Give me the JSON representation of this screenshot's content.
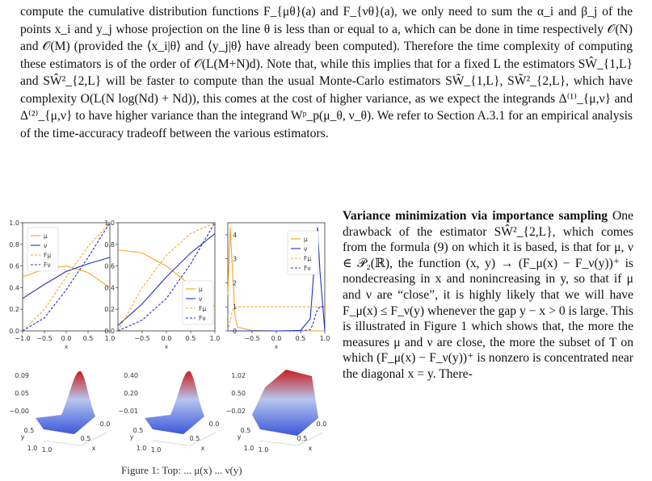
{
  "document": {
    "paragraph": "compute the cumulative distribution functions F_{μθ}(a) and F_{νθ}(a), we only need to sum the α_i and β_j of the points x_i and y_j whose projection on the line θ is less than or equal to a, which can be done in time respectively 𝒪(N) and 𝒪(M) (provided the ⟨x_i|θ⟩ and ⟨y_j|θ⟩ have already been computed). Therefore the time complexity of computing these estimators is of the order of 𝒪(L(M+N)d). Note that, while this implies that for a fixed L the estimators SŴ_{1,L} and SŴ²_{2,L} will be faster to compute than the usual Monte-Carlo estimators SW̃_{1,L}, SW̃²_{2,L}, which have complexity O(L(N log(Nd) + Nd)), this comes at the cost of higher variance, as we expect the integrands Δ⁽¹⁾_{μ,ν} and Δ⁽²⁾_{μ,ν} to have higher variance than the integrand Wᵖ_p(μ_θ, ν_θ). We refer to Section A.3.1 for an empirical analysis of the time-accuracy tradeoff between the various estimators.",
    "section_heading": "Variance minimization via importance sampling",
    "section_text": "One drawback of the estimator SŴ²_{2,L}, which comes from the formula (9) on which it is based, is that for μ, ν ∈ 𝒫₂(ℝ), the function (x, y) → (F_μ(x) − F_ν(y))⁺ is nondecreasing in x and nonincreasing in y, so that if μ and ν are “close”, it is highly likely that we will have F_μ(x) ≤ F_ν(y) whenever the gap y − x > 0 is large. This is illustrated in Figure 1 which shows that, the more the measures μ and ν are close, the more the subset of T on which (F_μ(x) − F_ν(y))⁺ is nonzero is concentrated near the diagonal x = y. There-",
    "caption_fragment": "Figure 1: Top: ... μ(x) ... ν(y)"
  },
  "chart_data": [
    {
      "type": "line",
      "x": [
        -1.0,
        -0.5,
        0.0,
        0.5,
        1.0
      ],
      "xlim": [
        -1.0,
        1.0
      ],
      "ylim": [
        0.0,
        1.0
      ],
      "xticks": [
        "−1.0",
        "−0.5",
        "0.0",
        "0.5",
        "1.0"
      ],
      "yticks": [
        "0.0",
        "0.2",
        "0.4",
        "0.6",
        "0.8",
        "1.0"
      ],
      "xlabel": "x",
      "legend": [
        "μ",
        "ν",
        "Fμ",
        "Fν"
      ],
      "legend_placement": "upper-left",
      "series": [
        {
          "name": "μ",
          "values": [
            0.5,
            0.57,
            0.6,
            0.54,
            0.4
          ]
        },
        {
          "name": "ν",
          "values": [
            0.3,
            0.43,
            0.55,
            0.62,
            0.68
          ]
        },
        {
          "name": "Fμ",
          "values": [
            0.0,
            0.2,
            0.5,
            0.78,
            1.0
          ]
        },
        {
          "name": "Fν",
          "values": [
            0.0,
            0.12,
            0.38,
            0.68,
            1.0
          ]
        }
      ]
    },
    {
      "type": "line",
      "x": [
        -1.0,
        -0.5,
        0.0,
        0.5,
        1.0
      ],
      "xlim": [
        -1.0,
        1.0
      ],
      "ylim": [
        0.0,
        1.0
      ],
      "xticks": [
        "−1.0",
        "−0.5",
        "0.0",
        "0.5",
        "1.0"
      ],
      "yticks": [
        "0.0",
        "0.2",
        "0.4",
        "0.6",
        "0.8",
        "1.0"
      ],
      "xlabel": "x",
      "legend": [
        "μ",
        "ν",
        "Fμ",
        "Fν"
      ],
      "legend_placement": "lower-right",
      "series": [
        {
          "name": "μ",
          "values": [
            0.75,
            0.72,
            0.6,
            0.42,
            0.22
          ]
        },
        {
          "name": "ν",
          "values": [
            0.05,
            0.25,
            0.5,
            0.72,
            0.9
          ]
        },
        {
          "name": "Fμ",
          "values": [
            0.0,
            0.4,
            0.7,
            0.9,
            1.0
          ]
        },
        {
          "name": "Fν",
          "values": [
            0.0,
            0.1,
            0.3,
            0.62,
            1.0
          ]
        }
      ]
    },
    {
      "type": "line",
      "x": [
        -1.0,
        -0.95,
        -0.9,
        -0.85,
        -0.8,
        -0.5,
        0.0,
        0.5,
        0.7,
        0.75,
        0.8,
        0.85,
        0.9,
        1.0
      ],
      "xlim": [
        -1.0,
        1.0
      ],
      "ylim": [
        0.0,
        4.5
      ],
      "xticks": [
        "−1.0",
        "−0.5",
        "0.0",
        "0.5",
        "1.0"
      ],
      "yticks": [
        "0",
        "1",
        "2",
        "3",
        "4"
      ],
      "xlabel": "x",
      "legend": [
        "μ",
        "ν",
        "Fμ",
        "Fν"
      ],
      "legend_placement": "upper-right",
      "series": [
        {
          "name": "μ",
          "values": [
            1.5,
            4.3,
            2.4,
            0.6,
            0.15,
            0.02,
            0.0,
            0.0,
            0.0,
            0.0,
            0.0,
            0.0,
            0.0,
            0.0
          ]
        },
        {
          "name": "ν",
          "values": [
            0.0,
            0.0,
            0.0,
            0.0,
            0.0,
            0.0,
            0.0,
            0.02,
            0.5,
            1.8,
            3.4,
            4.3,
            2.5,
            0.0
          ]
        },
        {
          "name": "Fμ",
          "values": [
            0.0,
            0.45,
            0.85,
            0.97,
            1.0,
            1.0,
            1.0,
            1.0,
            1.0,
            1.0,
            1.0,
            1.0,
            1.0,
            1.0
          ]
        },
        {
          "name": "Fν",
          "values": [
            0.0,
            0.0,
            0.0,
            0.0,
            0.0,
            0.0,
            0.0,
            0.0,
            0.05,
            0.25,
            0.6,
            0.9,
            1.0,
            1.0
          ]
        }
      ]
    },
    {
      "type": "surface",
      "zticks": [
        "0.09",
        "0.05",
        "−0.00"
      ],
      "peak": 0.09,
      "ylabel": "y",
      "xlabel": "x",
      "yticks": [
        "1.0",
        "0.5"
      ],
      "xticks": [
        "1.0",
        "0.5",
        "0.0"
      ]
    },
    {
      "type": "surface",
      "zticks": [
        "0.40",
        "0.20",
        "−0.01"
      ],
      "peak": 0.4,
      "ylabel": "y",
      "xlabel": "x",
      "yticks": [
        "1.0",
        "0.5"
      ],
      "xticks": [
        "1.0",
        "0.5",
        "0.0"
      ]
    },
    {
      "type": "surface",
      "zticks": [
        "1.02",
        "0.50",
        "−0.02"
      ],
      "peak": 1.02,
      "ylabel": "y",
      "xlabel": "x",
      "yticks": [
        "1.0",
        "0.5"
      ],
      "xticks": [
        "1.0",
        "0.5",
        "0.0"
      ]
    }
  ],
  "colors": {
    "mu": "#f5a623",
    "nu": "#2530c8",
    "axis": "#333333",
    "surface_low": "#3a57d9",
    "surface_high": "#c81e1e"
  }
}
